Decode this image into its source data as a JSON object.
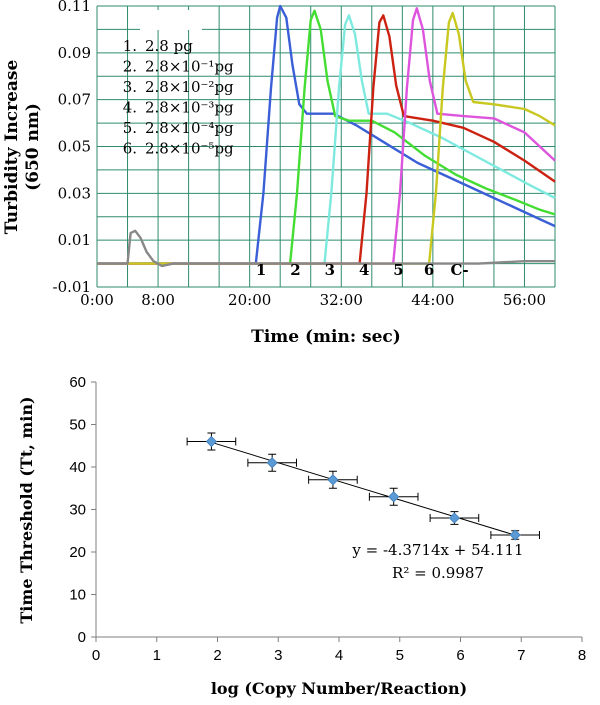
{
  "chart_data": [
    {
      "type": "line",
      "xlabel": "Time (min: sec)",
      "ylabel": "Turbidity Increase (650 nm)",
      "ylabel_lines": [
        "Turbidity Increase",
        "(650 nm)"
      ],
      "x_tick_labels": [
        "0:00",
        "8:00",
        "20:00",
        "32:00",
        "44:00",
        "56:00"
      ],
      "x_tick_values": [
        0,
        8,
        20,
        32,
        44,
        56
      ],
      "xlim": [
        0,
        60
      ],
      "ylim": [
        -0.01,
        0.11
      ],
      "y_ticks": [
        -0.01,
        0.01,
        0.03,
        0.05,
        0.07,
        0.09,
        0.11
      ],
      "y_tick_labels": [
        "-0.01",
        "0.01",
        "0.03",
        "0.05",
        "0.07",
        "0.09",
        "0.11"
      ],
      "grid": true,
      "legend_placement": "top-left",
      "legend": [
        {
          "num": "1.",
          "label": "2.8 pg"
        },
        {
          "num": "2.",
          "label": "2.8×10⁻¹pg"
        },
        {
          "num": "3.",
          "label": "2.8×10⁻²pg"
        },
        {
          "num": "4.",
          "label": "2.8×10⁻³pg"
        },
        {
          "num": "5.",
          "label": "2.8×10⁻⁴pg"
        },
        {
          "num": "6.",
          "label": "2.8×10⁻⁵pg"
        }
      ],
      "curve_labels": [
        {
          "text": "1",
          "x": 21.5
        },
        {
          "text": "2",
          "x": 26
        },
        {
          "text": "3",
          "x": 30.5
        },
        {
          "text": "4",
          "x": 35
        },
        {
          "text": "5",
          "x": 39.5
        },
        {
          "text": "6",
          "x": 43.5
        },
        {
          "text": "C-",
          "x": 47.5
        }
      ],
      "series": [
        {
          "color": "#3a5fd6",
          "points": [
            [
              0,
              0
            ],
            [
              20.8,
              0
            ],
            [
              21.8,
              0.03
            ],
            [
              22.8,
              0.075
            ],
            [
              23.6,
              0.105
            ],
            [
              24.0,
              0.11
            ],
            [
              24.8,
              0.105
            ],
            [
              25.6,
              0.085
            ],
            [
              26.5,
              0.068
            ],
            [
              27.5,
              0.064
            ],
            [
              31,
              0.064
            ],
            [
              34,
              0.059
            ],
            [
              38,
              0.051
            ],
            [
              42,
              0.043
            ],
            [
              46,
              0.037
            ],
            [
              50,
              0.031
            ],
            [
              54,
              0.025
            ],
            [
              58,
              0.019
            ],
            [
              60,
              0.016
            ]
          ]
        },
        {
          "color": "#44dd33",
          "points": [
            [
              0,
              0
            ],
            [
              25.3,
              0
            ],
            [
              26.2,
              0.03
            ],
            [
              27.2,
              0.075
            ],
            [
              28.0,
              0.104
            ],
            [
              28.5,
              0.108
            ],
            [
              29.3,
              0.1
            ],
            [
              30.2,
              0.078
            ],
            [
              31.2,
              0.063
            ],
            [
              33,
              0.061
            ],
            [
              36,
              0.061
            ],
            [
              39,
              0.056
            ],
            [
              43,
              0.046
            ],
            [
              47,
              0.038
            ],
            [
              51,
              0.032
            ],
            [
              55,
              0.027
            ],
            [
              58,
              0.023
            ],
            [
              60,
              0.021
            ]
          ]
        },
        {
          "color": "#7eeadf",
          "points": [
            [
              0,
              0
            ],
            [
              29.8,
              0
            ],
            [
              30.7,
              0.03
            ],
            [
              31.7,
              0.075
            ],
            [
              32.5,
              0.102
            ],
            [
              33.0,
              0.106
            ],
            [
              33.8,
              0.098
            ],
            [
              34.7,
              0.078
            ],
            [
              35.6,
              0.064
            ],
            [
              38,
              0.064
            ],
            [
              41,
              0.06
            ],
            [
              45,
              0.054
            ],
            [
              49,
              0.047
            ],
            [
              53,
              0.04
            ],
            [
              57,
              0.033
            ],
            [
              60,
              0.028
            ]
          ]
        },
        {
          "color": "#cc2211",
          "points": [
            [
              0,
              0
            ],
            [
              34.4,
              0
            ],
            [
              35.3,
              0.03
            ],
            [
              36.2,
              0.075
            ],
            [
              37.0,
              0.103
            ],
            [
              37.5,
              0.106
            ],
            [
              38.3,
              0.097
            ],
            [
              39.2,
              0.076
            ],
            [
              40.2,
              0.063
            ],
            [
              44,
              0.061
            ],
            [
              48,
              0.058
            ],
            [
              52,
              0.052
            ],
            [
              56,
              0.044
            ],
            [
              60,
              0.035
            ]
          ]
        },
        {
          "color": "#dd55dd",
          "points": [
            [
              0,
              0
            ],
            [
              38.8,
              0
            ],
            [
              39.7,
              0.03
            ],
            [
              40.6,
              0.075
            ],
            [
              41.4,
              0.104
            ],
            [
              41.9,
              0.109
            ],
            [
              42.7,
              0.1
            ],
            [
              43.6,
              0.078
            ],
            [
              44.6,
              0.064
            ],
            [
              48,
              0.063
            ],
            [
              52,
              0.062
            ],
            [
              56,
              0.056
            ],
            [
              60,
              0.044
            ]
          ]
        },
        {
          "color": "#c8c820",
          "points": [
            [
              0,
              0
            ],
            [
              43.5,
              0
            ],
            [
              44.4,
              0.03
            ],
            [
              45.3,
              0.075
            ],
            [
              46.1,
              0.103
            ],
            [
              46.6,
              0.107
            ],
            [
              47.4,
              0.098
            ],
            [
              48.3,
              0.078
            ],
            [
              49.3,
              0.069
            ],
            [
              52,
              0.068
            ],
            [
              56,
              0.066
            ],
            [
              58,
              0.063
            ],
            [
              60,
              0.059
            ]
          ]
        },
        {
          "color": "#888888",
          "points": [
            [
              0,
              0
            ],
            [
              4.0,
              0
            ],
            [
              4.4,
              0.013
            ],
            [
              5.0,
              0.014
            ],
            [
              5.7,
              0.011
            ],
            [
              6.5,
              0.005
            ],
            [
              7.4,
              0.001
            ],
            [
              8.5,
              -0.001
            ],
            [
              10,
              0
            ],
            [
              20,
              0
            ],
            [
              30,
              0
            ],
            [
              40,
              0
            ],
            [
              50,
              0
            ],
            [
              56,
              0.001
            ],
            [
              60,
              0.001
            ]
          ]
        }
      ]
    },
    {
      "type": "scatter",
      "xlabel": "log (Copy Number/Reaction)",
      "ylabel": "Time Threshold (Tt, min)",
      "xlim": [
        0,
        8
      ],
      "ylim": [
        0,
        60
      ],
      "x_ticks": [
        0,
        1,
        2,
        3,
        4,
        5,
        6,
        7,
        8
      ],
      "y_ticks": [
        0,
        10,
        20,
        30,
        40,
        50,
        60
      ],
      "x_tick_labels": [
        "0",
        "1",
        "2",
        "3",
        "4",
        "5",
        "6",
        "7",
        "8"
      ],
      "y_tick_labels": [
        "0",
        "10",
        "20",
        "30",
        "40",
        "50",
        "60"
      ],
      "grid": false,
      "marker_color": "#5b9bd5",
      "points": [
        {
          "x": 1.9,
          "y": 46,
          "xerr": 0.4,
          "yerr": 2
        },
        {
          "x": 2.9,
          "y": 41,
          "xerr": 0.4,
          "yerr": 2
        },
        {
          "x": 3.9,
          "y": 37,
          "xerr": 0.4,
          "yerr": 2
        },
        {
          "x": 4.9,
          "y": 33,
          "xerr": 0.4,
          "yerr": 2
        },
        {
          "x": 5.9,
          "y": 28,
          "xerr": 0.4,
          "yerr": 1.5
        },
        {
          "x": 6.9,
          "y": 24,
          "xerr": 0.4,
          "yerr": 1
        }
      ],
      "trendline": {
        "slope": -4.3714,
        "intercept": 54.111,
        "x_range": [
          1.9,
          6.9
        ]
      },
      "equation": "y = -4.3714x + 54.111",
      "r_squared": "R² = 0.9987"
    }
  ]
}
